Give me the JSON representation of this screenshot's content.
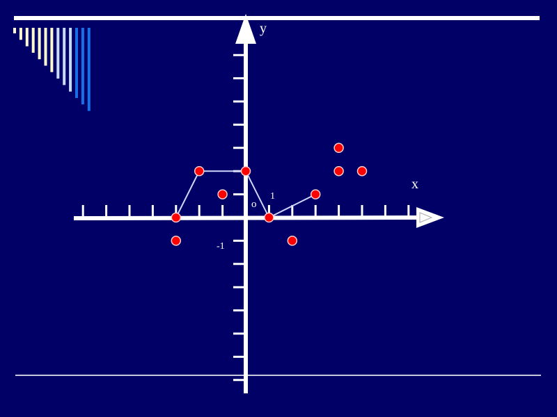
{
  "colors": {
    "background": "#000066",
    "axes": "#ffffff",
    "points": "#ff0000",
    "point_outline": "#ffcccc",
    "polyline": "#d0d8ff",
    "deco_cream": "#fffacd",
    "deco_light_blue": "#c8dcf5",
    "deco_blue": "#1a6ee6"
  },
  "chart_data": {
    "type": "scatter",
    "title": "",
    "xlabel": "x",
    "ylabel": "y",
    "origin_label": "o",
    "tick_labels": {
      "x_one": "1",
      "y_minus_one": "-1"
    },
    "xlim": [
      -7,
      7
    ],
    "ylim": [
      -7,
      8
    ],
    "grid": false,
    "polyline": {
      "x": [
        -3,
        -2,
        0,
        1,
        3
      ],
      "y": [
        0,
        2,
        2,
        0,
        1
      ]
    },
    "points": [
      {
        "x": -3,
        "y": 0
      },
      {
        "x": -2,
        "y": 2
      },
      {
        "x": 0,
        "y": 2
      },
      {
        "x": 1,
        "y": 0
      },
      {
        "x": 3,
        "y": 1
      },
      {
        "x": -1,
        "y": 1
      },
      {
        "x": -3,
        "y": -1
      },
      {
        "x": 2,
        "y": -1
      },
      {
        "x": 4,
        "y": 3
      },
      {
        "x": 4,
        "y": 2
      },
      {
        "x": 5,
        "y": 2
      }
    ]
  }
}
